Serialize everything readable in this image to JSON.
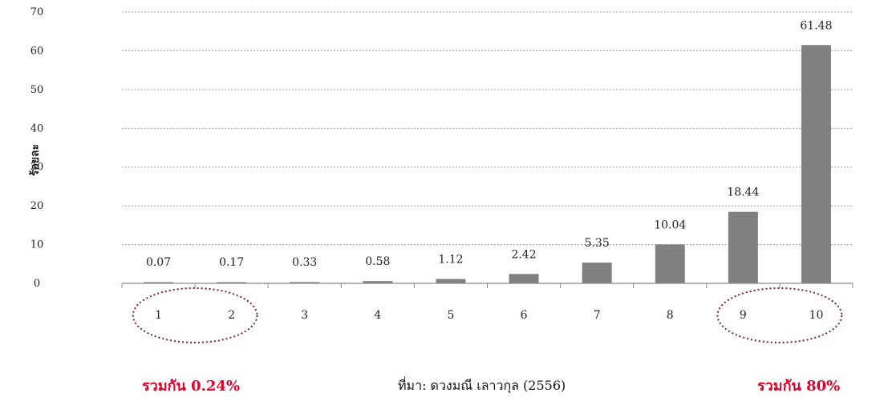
{
  "chart_data": {
    "type": "bar",
    "categories": [
      "1",
      "2",
      "3",
      "4",
      "5",
      "6",
      "7",
      "8",
      "9",
      "10"
    ],
    "values": [
      0.07,
      0.17,
      0.33,
      0.58,
      1.12,
      2.42,
      5.35,
      10.04,
      18.44,
      61.48
    ],
    "data_labels": [
      "0.07",
      "0.17",
      "0.33",
      "0.58",
      "1.12",
      "2.42",
      "5.35",
      "10.04",
      "18.44",
      "61.48"
    ],
    "ylabel": "ร้อยละ",
    "ylim": [
      0,
      70
    ],
    "yticks": [
      "0",
      "10",
      "20",
      "30",
      "40",
      "50",
      "60",
      "70"
    ],
    "grid": true,
    "bar_color": "#808080",
    "highlight_color": "#7a1f3d"
  },
  "notes": {
    "left": "รวมกัน 0.24%",
    "right": "รวมกัน 80%",
    "source": "ที่มา: ดวงมณี เลาวกุล (2556)"
  }
}
